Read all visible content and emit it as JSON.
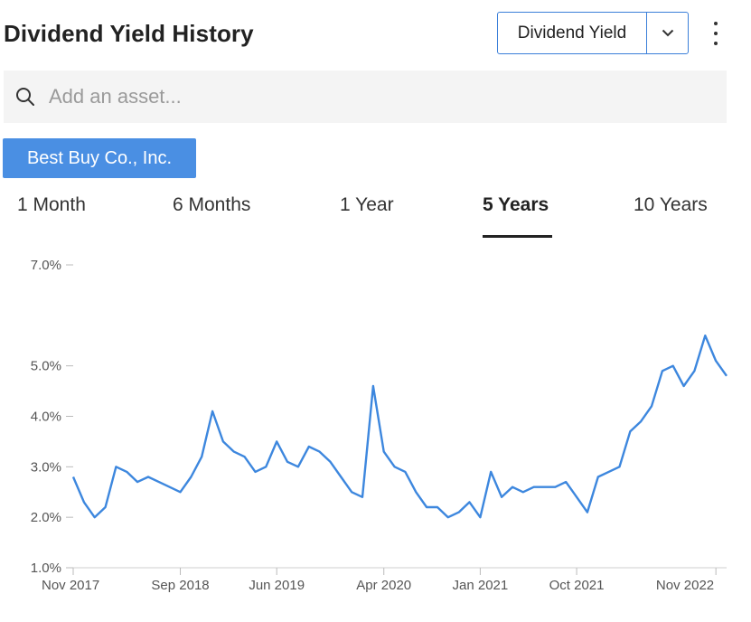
{
  "header": {
    "title": "Dividend Yield History"
  },
  "metric_select": {
    "label": "Dividend Yield"
  },
  "search": {
    "placeholder": "Add an asset..."
  },
  "asset_chip": {
    "label": "Best Buy Co., Inc."
  },
  "tabs": [
    {
      "label": "1 Month",
      "active": false
    },
    {
      "label": "6 Months",
      "active": false
    },
    {
      "label": "1 Year",
      "active": false
    },
    {
      "label": "5 Years",
      "active": true
    },
    {
      "label": "10 Years",
      "active": false
    }
  ],
  "colors": {
    "accent": "#4a8fe3",
    "line": "#3d87de",
    "border": "#3b7fd9"
  },
  "chart_data": {
    "type": "line",
    "title": "",
    "xlabel": "",
    "ylabel": "",
    "ylim": [
      1.0,
      7.0
    ],
    "y_ticks": [
      "1.0%",
      "2.0%",
      "3.0%",
      "4.0%",
      "5.0%",
      "7.0%"
    ],
    "y_tick_values": [
      1.0,
      2.0,
      3.0,
      4.0,
      5.0,
      7.0
    ],
    "x_ticks": [
      "Nov 2017",
      "Sep 2018",
      "Jun 2019",
      "Apr 2020",
      "Jan 2021",
      "Oct 2021",
      "Nov 2022"
    ],
    "x_tick_values": [
      "2017-11",
      "2018-09",
      "2019-06",
      "2020-04",
      "2021-01",
      "2021-10",
      "2022-11"
    ],
    "grid": false,
    "series": [
      {
        "x": [
          "2017-11",
          "2017-12",
          "2018-01",
          "2018-02",
          "2018-03",
          "2018-04",
          "2018-05",
          "2018-06",
          "2018-07",
          "2018-08",
          "2018-09",
          "2018-10",
          "2018-11",
          "2018-12",
          "2019-01",
          "2019-02",
          "2019-03",
          "2019-04",
          "2019-05",
          "2019-06",
          "2019-07",
          "2019-08",
          "2019-09",
          "2019-10",
          "2019-11",
          "2019-12",
          "2020-01",
          "2020-02",
          "2020-03",
          "2020-04",
          "2020-05",
          "2020-06",
          "2020-07",
          "2020-08",
          "2020-09",
          "2020-10",
          "2020-11",
          "2020-12",
          "2021-01",
          "2021-02",
          "2021-03",
          "2021-04",
          "2021-05",
          "2021-06",
          "2021-07",
          "2021-08",
          "2021-09",
          "2021-10",
          "2021-11",
          "2021-12",
          "2022-01",
          "2022-02",
          "2022-03",
          "2022-04",
          "2022-05",
          "2022-06",
          "2022-07",
          "2022-08",
          "2022-09",
          "2022-10",
          "2022-11",
          "2022-12"
        ],
        "values": [
          2.8,
          2.3,
          2.0,
          2.2,
          3.0,
          2.9,
          2.7,
          2.8,
          2.7,
          2.6,
          2.5,
          2.8,
          3.2,
          4.1,
          3.5,
          3.3,
          3.2,
          2.9,
          3.0,
          3.5,
          3.1,
          3.0,
          3.4,
          3.3,
          3.1,
          2.8,
          2.5,
          2.4,
          4.6,
          3.3,
          3.0,
          2.9,
          2.5,
          2.2,
          2.2,
          2.0,
          2.1,
          2.3,
          2.0,
          2.9,
          2.4,
          2.6,
          2.5,
          2.6,
          2.6,
          2.6,
          2.7,
          2.4,
          2.1,
          2.8,
          2.9,
          3.0,
          3.7,
          3.9,
          4.2,
          4.9,
          5.0,
          4.6,
          4.9,
          5.6,
          5.1,
          4.8
        ]
      }
    ]
  }
}
